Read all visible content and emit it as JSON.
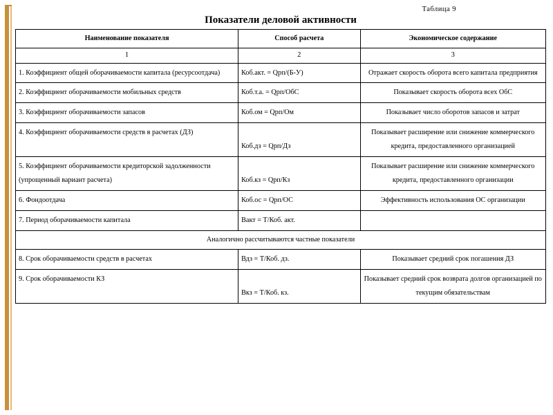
{
  "table_number": "Таблица  9",
  "title": "Показатели деловой активности",
  "headers": [
    "Наименование показателя",
    "Способ расчета",
    "Экономическое содержание"
  ],
  "colnums": [
    "1",
    "2",
    "3"
  ],
  "rows": [
    {
      "name": "1. Коэффициент общей оборачиваемости капитала (ресурсоотдача)",
      "formula": "Коб.акт. = Qрп/(Б-У)",
      "desc": "Отражает скорость оборота всего капитала предприятия"
    },
    {
      "name": "2. Коэффициент оборачиваемости мобильных  средств",
      "formula": "Коб.т.а. = Qрп/ОбС",
      "desc": "Показывает скорость оборота всех  ОбС"
    },
    {
      "name": "3. Коэффициент оборачиваемости запасов",
      "formula": "Коб.ом = Qрп/Ом",
      "desc": "Показывает число оборотов запасов и затрат"
    },
    {
      "name": "4. Коэффициент оборачиваемости средств в расчетах (ДЗ)",
      "formula": "Коб.дз = Qрп/Дз",
      "desc": "Показывает расширение или снижение коммерческого кредита, предоставленного организацией"
    },
    {
      "name": "5.      Коэффициент оборачиваемости кредиторской задолженности\n(упрощенный вариант расчета)",
      "formula": "Коб.кз = Qрп/Кз",
      "desc": "Показывает расширение или снижение коммерческого кредита, предоставленного организации"
    },
    {
      "name": "6. Фондоотдача",
      "formula": "Коб.ос = Qрп/ОС",
      "desc": "Эффективность использования ОС организации"
    },
    {
      "name": "7. Период оборачиваемости капитала",
      "formula": "Вакт = Т/Коб. акт.",
      "desc": ""
    }
  ],
  "note": "Аналогично рассчитываются частные показатели",
  "rows2": [
    {
      "name": "8. Срок оборачиваемости средств в расчетах",
      "formula": "Вдз = Т/Коб. дз.",
      "desc": "Показывает средний срок погашения ДЗ"
    },
    {
      "name": "9. Срок оборачиваемости КЗ",
      "formula": "Вкз = Т/Коб. кз.",
      "desc": "Показывает средний срок возврата долгов организацией по текущим обязательствам"
    }
  ],
  "style": {
    "page_bg": "#ffffff",
    "border_color": "#000000",
    "accent_color": "#c98f3a",
    "accent_inner": "#e6b87a",
    "font_family": "Times New Roman",
    "title_fontsize_pt": 15,
    "body_fontsize_pt": 10.2,
    "col_widths_pct": [
      42,
      23,
      35
    ],
    "line_height": 1.95
  }
}
